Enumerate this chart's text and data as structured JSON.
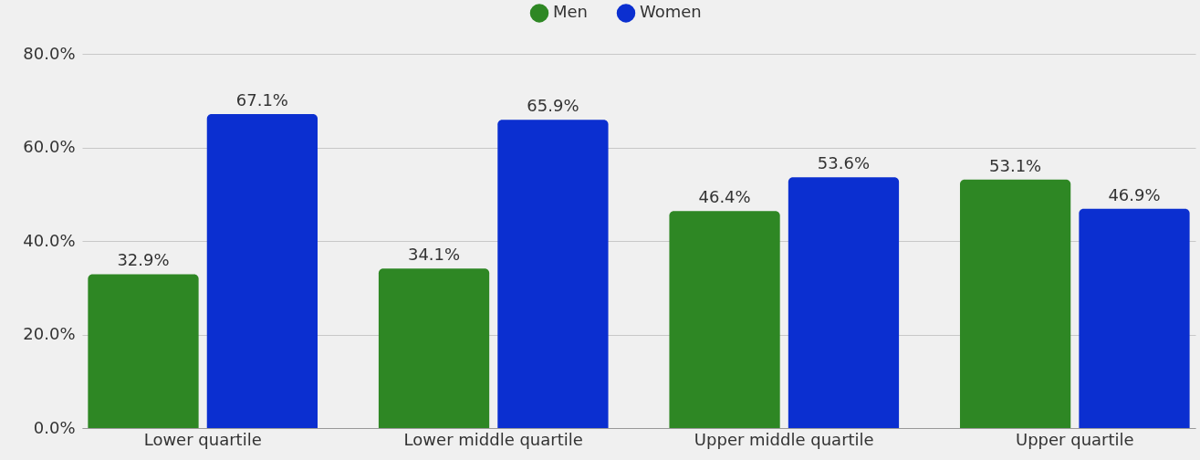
{
  "chart_data": {
    "type": "bar",
    "categories": [
      "Lower quartile",
      "Lower middle quartile",
      "Upper middle quartile",
      "Upper quartile"
    ],
    "series": [
      {
        "name": "Men",
        "color": "#2e8724",
        "values": [
          32.9,
          34.1,
          46.4,
          53.1
        ],
        "value_labels": [
          "32.9%",
          "34.1%",
          "46.4%",
          "53.1%"
        ]
      },
      {
        "name": "Women",
        "color": "#0b2fd0",
        "values": [
          67.1,
          65.9,
          53.6,
          46.9
        ],
        "value_labels": [
          "67.1%",
          "65.9%",
          "53.6%",
          "46.9%"
        ]
      }
    ],
    "ylim": [
      0,
      80
    ],
    "yticks": [
      {
        "value": 0,
        "label": "0.0%"
      },
      {
        "value": 20,
        "label": "20.0%"
      },
      {
        "value": 40,
        "label": "40.0%"
      },
      {
        "value": 60,
        "label": "60.0%"
      },
      {
        "value": 80,
        "label": "80.0%"
      }
    ],
    "grid": "y",
    "legend": "top"
  }
}
